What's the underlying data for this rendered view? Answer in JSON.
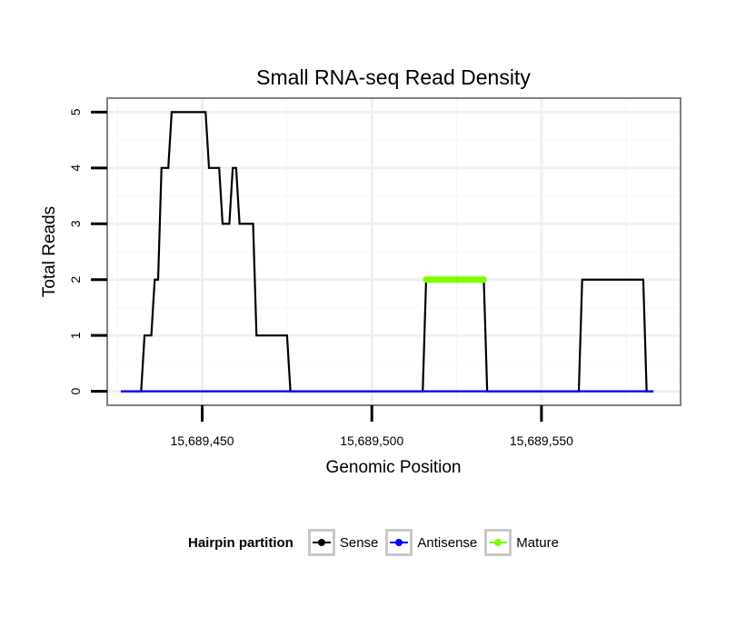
{
  "chart_data": {
    "type": "line",
    "title": "Small RNA-seq Read Density",
    "xlabel": "Genomic Position",
    "ylabel": "Total Reads",
    "xlim": [
      15689422,
      15689591
    ],
    "ylim": [
      -0.25,
      5.25
    ],
    "x_ticks": [
      15689450,
      15689500,
      15689550
    ],
    "x_tick_labels": [
      "15,689,450",
      "15,689,500",
      "15,689,550"
    ],
    "y_ticks": [
      0,
      1,
      2,
      3,
      4,
      5
    ],
    "y_tick_labels": [
      "0",
      "1",
      "2",
      "3",
      "4",
      "5"
    ],
    "grid": true,
    "legend_position": "bottom",
    "legend_title": "Hairpin partition",
    "series": [
      {
        "name": "Sense",
        "color": "#000000",
        "points": [
          [
            15689426,
            0
          ],
          [
            15689432,
            0
          ],
          [
            15689433,
            1
          ],
          [
            15689435,
            1
          ],
          [
            15689436,
            2
          ],
          [
            15689437,
            2
          ],
          [
            15689438,
            4
          ],
          [
            15689440,
            4
          ],
          [
            15689441,
            5
          ],
          [
            15689451,
            5
          ],
          [
            15689452,
            4
          ],
          [
            15689455,
            4
          ],
          [
            15689456,
            3
          ],
          [
            15689458,
            3
          ],
          [
            15689459,
            4
          ],
          [
            15689460,
            4
          ],
          [
            15689461,
            3
          ],
          [
            15689465,
            3
          ],
          [
            15689466,
            1
          ],
          [
            15689475,
            1
          ],
          [
            15689476,
            0
          ],
          [
            15689515,
            0
          ],
          [
            15689516,
            2
          ],
          [
            15689533,
            2
          ],
          [
            15689534,
            0
          ],
          [
            15689561,
            0
          ],
          [
            15689562,
            2
          ],
          [
            15689580,
            2
          ],
          [
            15689581,
            0
          ],
          [
            15689583,
            0
          ]
        ]
      },
      {
        "name": "Antisense",
        "color": "#0000ff",
        "points": [
          [
            15689426,
            0
          ],
          [
            15689583,
            0
          ]
        ]
      },
      {
        "name": "Mature",
        "color": "#7cfc00",
        "points": [
          [
            15689516,
            2
          ],
          [
            15689533,
            2
          ]
        ]
      }
    ]
  }
}
